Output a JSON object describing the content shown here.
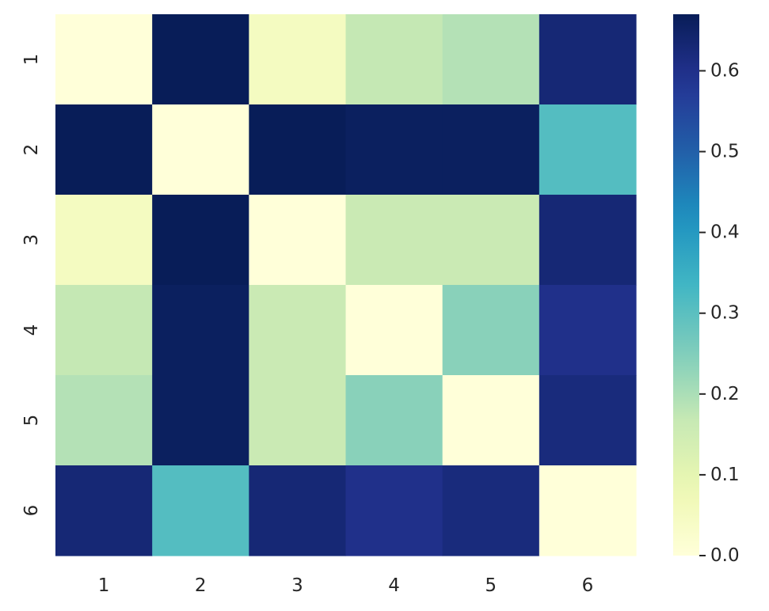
{
  "chart_data": {
    "type": "heatmap",
    "title": "",
    "xlabel": "",
    "ylabel": "",
    "x_categories": [
      "1",
      "2",
      "3",
      "4",
      "5",
      "6"
    ],
    "y_categories": [
      "1",
      "2",
      "3",
      "4",
      "5",
      "6"
    ],
    "values": [
      [
        0.0,
        0.67,
        0.05,
        0.17,
        0.19,
        0.63
      ],
      [
        0.67,
        0.0,
        0.67,
        0.66,
        0.66,
        0.31
      ],
      [
        0.05,
        0.67,
        0.0,
        0.16,
        0.16,
        0.63
      ],
      [
        0.17,
        0.66,
        0.16,
        0.0,
        0.24,
        0.6
      ],
      [
        0.19,
        0.66,
        0.16,
        0.24,
        0.0,
        0.62
      ],
      [
        0.63,
        0.31,
        0.63,
        0.6,
        0.62,
        0.0
      ]
    ],
    "colormap": "YlGnBu",
    "vmin": 0.0,
    "vmax": 0.67,
    "colorbar": {
      "ticks": [
        0.0,
        0.1,
        0.2,
        0.3,
        0.4,
        0.5,
        0.6
      ],
      "tick_labels": [
        "0.0",
        "0.1",
        "0.2",
        "0.3",
        "0.4",
        "0.5",
        "0.6"
      ]
    },
    "grid": false,
    "legend": "none"
  }
}
